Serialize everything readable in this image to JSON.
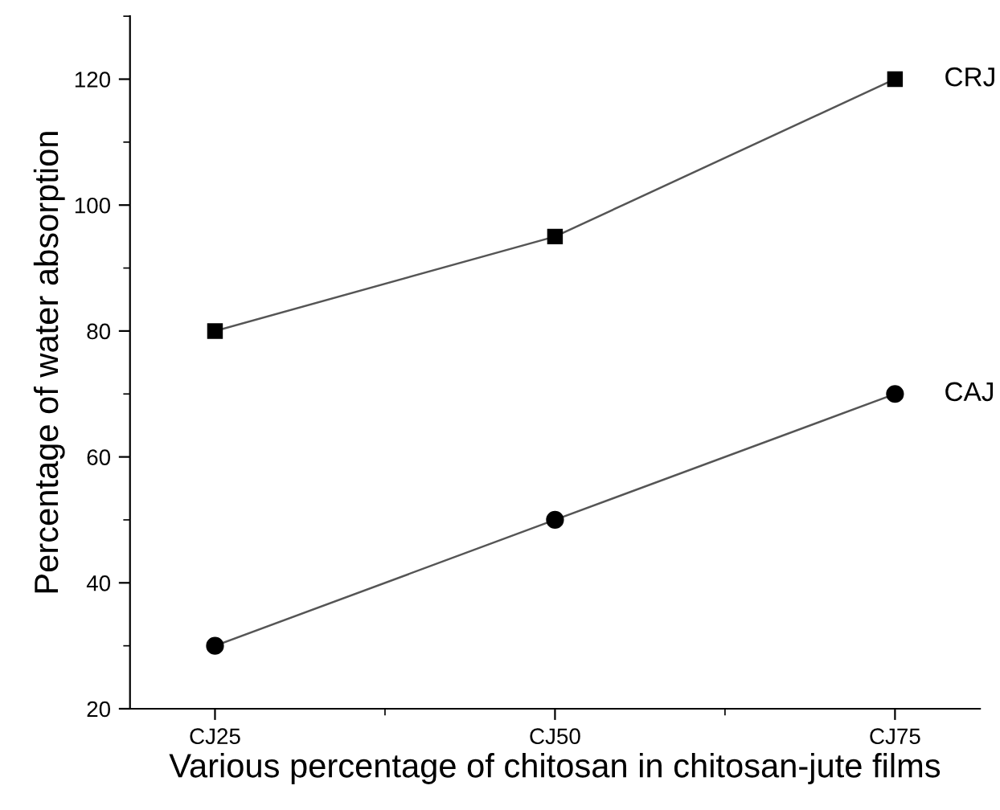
{
  "chart_data": {
    "type": "line",
    "xlabel": "Various percentage of chitosan in chitosan-jute films",
    "ylabel": "Percentage of water absorption",
    "categories": [
      "CJ25",
      "CJ50",
      "CJ75"
    ],
    "series": [
      {
        "name": "CRJ",
        "color": "#000000",
        "marker": "square",
        "values": [
          80,
          95,
          120
        ]
      },
      {
        "name": "CAJ",
        "color": "#000000",
        "marker": "circle",
        "values": [
          30,
          50,
          70
        ]
      }
    ],
    "ylim": [
      20,
      130
    ],
    "yticks": [
      20,
      40,
      60,
      80,
      100,
      120
    ],
    "grid": false,
    "legend": false
  }
}
